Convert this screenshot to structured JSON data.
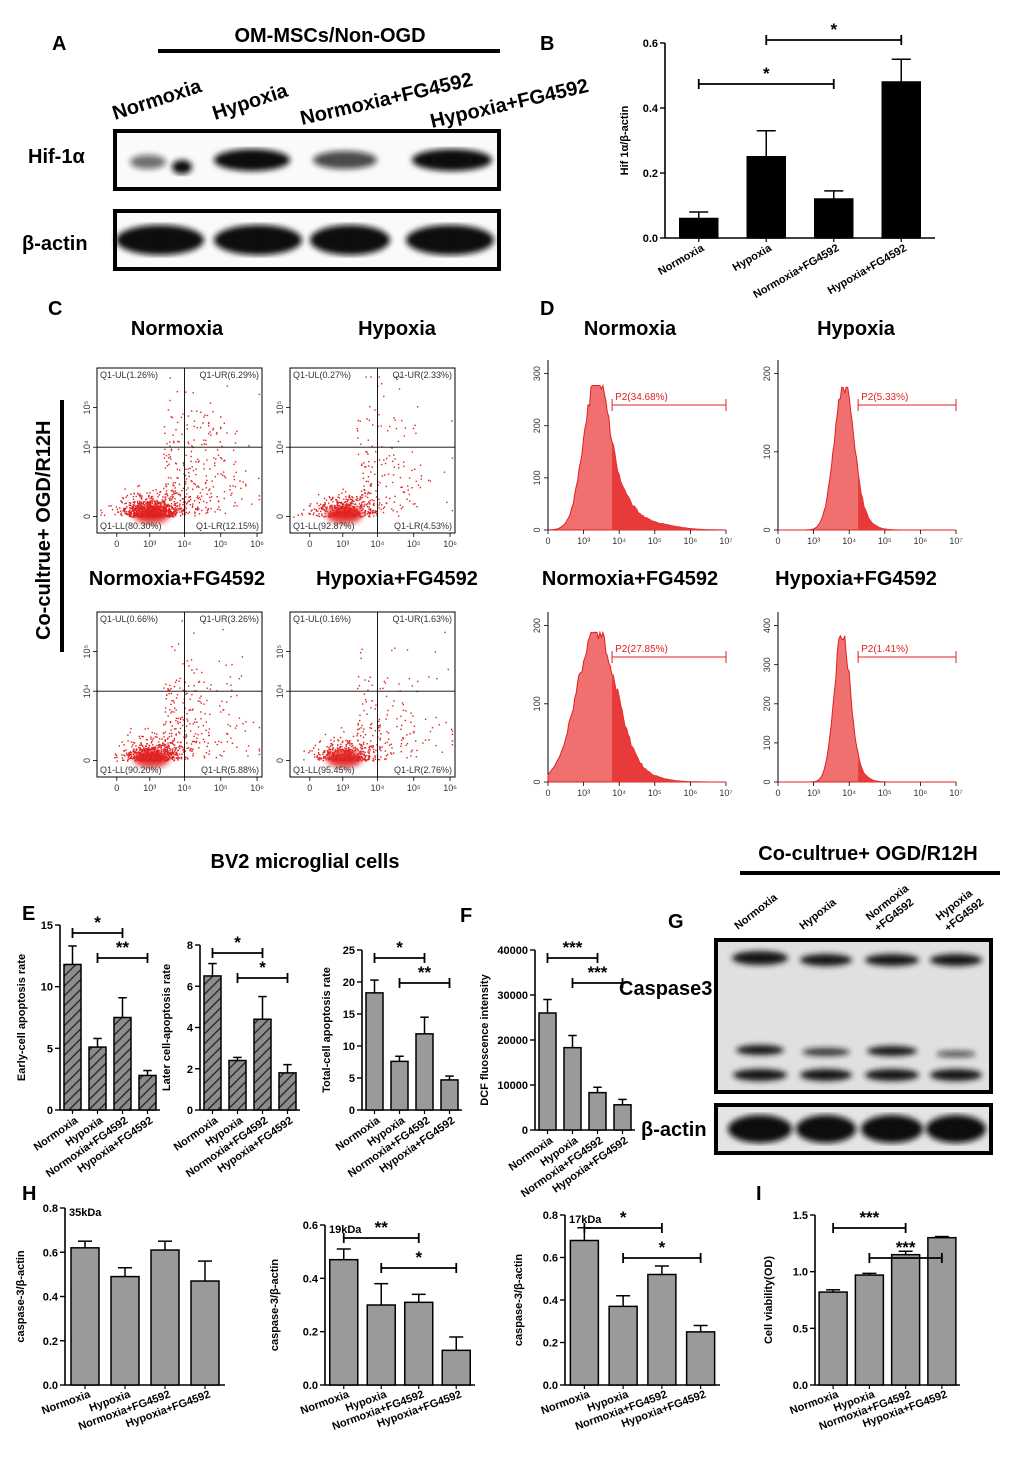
{
  "panel_labels": {
    "A": "A",
    "B": "B",
    "C": "C",
    "D": "D",
    "E": "E",
    "F": "F",
    "G": "G",
    "H": "H",
    "I": "I"
  },
  "groups": [
    "Normoxia",
    "Hypoxia",
    "Normoxia+FG4592",
    "Hypoxia+FG4592"
  ],
  "panel_a": {
    "header": "OM-MSCs/Non-OGD",
    "lanes": [
      "Normoxia",
      "Hypoxia",
      "Normoxia+FG4592",
      "Hypoxia+FG4592"
    ],
    "rows": [
      "Hif-1α",
      "β-actin"
    ]
  },
  "side_label": "Co-cultrue+ OGD/R12H",
  "panel_c": {
    "plots": [
      {
        "title": "Normoxia",
        "ul": "Q1-UL(1.26%)",
        "ur": "Q1-UR(6.29%)",
        "ll": "Q1-LL(80.30%)",
        "lr": "Q1-LR(12.15%)"
      },
      {
        "title": "Hypoxia",
        "ul": "Q1-UL(0.27%)",
        "ur": "Q1-UR(2.33%)",
        "ll": "Q1-LL(92.87%)",
        "lr": "Q1-LR(4.53%)"
      },
      {
        "title": "Normoxia+FG4592",
        "ul": "Q1-UL(0.66%)",
        "ur": "Q1-UR(3.26%)",
        "ll": "Q1-LL(90.20%)",
        "lr": "Q1-LR(5.88%)"
      },
      {
        "title": "Hypoxia+FG4592",
        "ul": "Q1-UL(0.16%)",
        "ur": "Q1-UR(1.63%)",
        "ll": "Q1-LL(95.45%)",
        "lr": "Q1-LR(2.76%)"
      }
    ],
    "xticks": [
      "0",
      "10³",
      "10⁴",
      "10⁵",
      "10⁶"
    ],
    "yticks": [
      "0",
      "10⁴",
      "10⁵"
    ]
  },
  "panel_d": {
    "plots": [
      {
        "title": "Normoxia",
        "gate": "P2(34.68%)",
        "yticks": [
          "0",
          "100",
          "200",
          "300"
        ]
      },
      {
        "title": "Hypoxia",
        "gate": "P2(5.33%)",
        "yticks": [
          "0",
          "100",
          "200"
        ]
      },
      {
        "title": "Normoxia+FG4592",
        "gate": "P2(27.85%)",
        "yticks": [
          "0",
          "100",
          "200"
        ]
      },
      {
        "title": "Hypoxia+FG4592",
        "gate": "P2(1.41%)",
        "yticks": [
          "0",
          "100",
          "200",
          "300",
          "400"
        ]
      }
    ],
    "xticks": [
      "0",
      "10³",
      "10⁴",
      "10⁵",
      "10⁶",
      "10⁷"
    ]
  },
  "bv2_title": "BV2 microglial cells",
  "panel_g": {
    "header": "Co-cultrue+ OGD/R12H",
    "lanes": [
      "Normoxia",
      "Hypoxia",
      "Normoxia\n+FG4592",
      "Hypoxia\n+FG4592"
    ],
    "rows": [
      "Caspase3",
      "β-actin"
    ]
  },
  "chart_data": [
    {
      "id": "B",
      "type": "bar",
      "categories": [
        "Normoxia",
        "Hypoxia",
        "Normoxia+FG4592",
        "Hypoxia+FG4592"
      ],
      "values": [
        0.06,
        0.25,
        0.12,
        0.48
      ],
      "errors": [
        0.02,
        0.08,
        0.025,
        0.07
      ],
      "ylabel": "Hif 1α/β-actin",
      "ylim": [
        0,
        0.6
      ],
      "yticks": [
        "0.0",
        "0.2",
        "0.4",
        "0.6"
      ],
      "sig": [
        {
          "from": 1,
          "to": 3,
          "label": "*"
        },
        {
          "from": 0,
          "to": 2,
          "label": "*"
        }
      ]
    },
    {
      "id": "E1",
      "type": "bar",
      "categories": [
        "Normoxia",
        "Hypoxia",
        "Normoxia+FG4592",
        "Hypoxia+FG4592"
      ],
      "values": [
        11.8,
        5.1,
        7.5,
        2.8
      ],
      "errors": [
        1.5,
        0.7,
        1.6,
        0.4
      ],
      "ylabel": "Early-cell apoptosis rate",
      "ylim": [
        0,
        15
      ],
      "yticks": [
        "0",
        "5",
        "10",
        "15"
      ],
      "sig": [
        {
          "from": 0,
          "to": 2,
          "label": "*"
        },
        {
          "from": 1,
          "to": 3,
          "label": "**"
        }
      ]
    },
    {
      "id": "E2",
      "type": "bar",
      "categories": [
        "Normoxia",
        "Hypoxia",
        "Normoxia+FG4592",
        "Hypoxia+FG4592"
      ],
      "values": [
        6.5,
        2.4,
        4.4,
        1.8
      ],
      "errors": [
        0.6,
        0.15,
        1.1,
        0.4
      ],
      "ylabel": "Later cell-apoptosis rate",
      "ylim": [
        0,
        8
      ],
      "yticks": [
        "0",
        "2",
        "4",
        "6",
        "8"
      ],
      "sig": [
        {
          "from": 0,
          "to": 2,
          "label": "*"
        },
        {
          "from": 1,
          "to": 3,
          "label": "*"
        }
      ]
    },
    {
      "id": "E3",
      "type": "bar",
      "categories": [
        "Normoxia",
        "Hypoxia",
        "Normoxia+FG4592",
        "Hypoxia+FG4592"
      ],
      "values": [
        18.3,
        7.6,
        11.9,
        4.7
      ],
      "errors": [
        2.0,
        0.8,
        2.6,
        0.6
      ],
      "ylabel": "Total-cell apoptosis rate",
      "ylim": [
        0,
        25
      ],
      "yticks": [
        "0",
        "5",
        "10",
        "15",
        "20",
        "25"
      ],
      "sig": [
        {
          "from": 0,
          "to": 2,
          "label": "*"
        },
        {
          "from": 1,
          "to": 3,
          "label": "**"
        }
      ]
    },
    {
      "id": "F",
      "type": "bar",
      "categories": [
        "Normoxia",
        "Hypoxia",
        "Normoxia+FG4592",
        "Hypoxia+FG4592"
      ],
      "values": [
        26000,
        18300,
        8300,
        5600
      ],
      "errors": [
        3000,
        2700,
        1200,
        1200
      ],
      "ylabel": "DCF fluoscence intensity",
      "ylim": [
        0,
        40000
      ],
      "yticks": [
        "0",
        "10000",
        "20000",
        "30000",
        "40000"
      ],
      "sig": [
        {
          "from": 0,
          "to": 2,
          "label": "***"
        },
        {
          "from": 1,
          "to": 3,
          "label": "***"
        }
      ]
    },
    {
      "id": "H1",
      "type": "bar",
      "title": "35kDa",
      "categories": [
        "Normoxia",
        "Hypoxia",
        "Normoxia+FG4592",
        "Hypoxia+FG4592"
      ],
      "values": [
        0.62,
        0.49,
        0.61,
        0.47
      ],
      "errors": [
        0.03,
        0.04,
        0.04,
        0.09
      ],
      "ylabel": "caspase-3/β-actin",
      "ylim": [
        0,
        0.8
      ],
      "yticks": [
        "0.0",
        "0.2",
        "0.4",
        "0.6",
        "0.8"
      ],
      "sig": []
    },
    {
      "id": "H2",
      "type": "bar",
      "title": "19kDa",
      "categories": [
        "Normoxia",
        "Hypoxia",
        "Normoxia+FG4592",
        "Hypoxia+FG4592"
      ],
      "values": [
        0.47,
        0.3,
        0.31,
        0.13
      ],
      "errors": [
        0.04,
        0.08,
        0.03,
        0.05
      ],
      "ylabel": "caspase-3/β-actin",
      "ylim": [
        0,
        0.6
      ],
      "yticks": [
        "0.0",
        "0.2",
        "0.4",
        "0.6"
      ],
      "sig": [
        {
          "from": 0,
          "to": 2,
          "label": "**"
        },
        {
          "from": 1,
          "to": 3,
          "label": "*"
        }
      ]
    },
    {
      "id": "H3",
      "type": "bar",
      "title": "17kDa",
      "categories": [
        "Normoxia",
        "Hypoxia",
        "Normoxia+FG4592",
        "Hypoxia+FG4592"
      ],
      "values": [
        0.68,
        0.37,
        0.52,
        0.25
      ],
      "errors": [
        0.06,
        0.05,
        0.04,
        0.03
      ],
      "ylabel": "caspase-3/β-actin",
      "ylim": [
        0,
        0.8
      ],
      "yticks": [
        "0.0",
        "0.2",
        "0.4",
        "0.6",
        "0.8"
      ],
      "sig": [
        {
          "from": 0,
          "to": 2,
          "label": "*"
        },
        {
          "from": 1,
          "to": 3,
          "label": "*"
        }
      ]
    },
    {
      "id": "I",
      "type": "bar",
      "categories": [
        "Normoxia",
        "Hypoxia",
        "Normoxia+FG4592",
        "Hypoxia+FG4592"
      ],
      "values": [
        0.82,
        0.97,
        1.15,
        1.3
      ],
      "errors": [
        0.02,
        0.015,
        0.03,
        0.01
      ],
      "ylabel": "Cell viability(OD)",
      "ylim": [
        0,
        1.5
      ],
      "yticks": [
        "0.0",
        "0.5",
        "1.0",
        "1.5"
      ],
      "sig": [
        {
          "from": 0,
          "to": 2,
          "label": "***"
        },
        {
          "from": 1,
          "to": 3,
          "label": "***"
        }
      ]
    }
  ]
}
